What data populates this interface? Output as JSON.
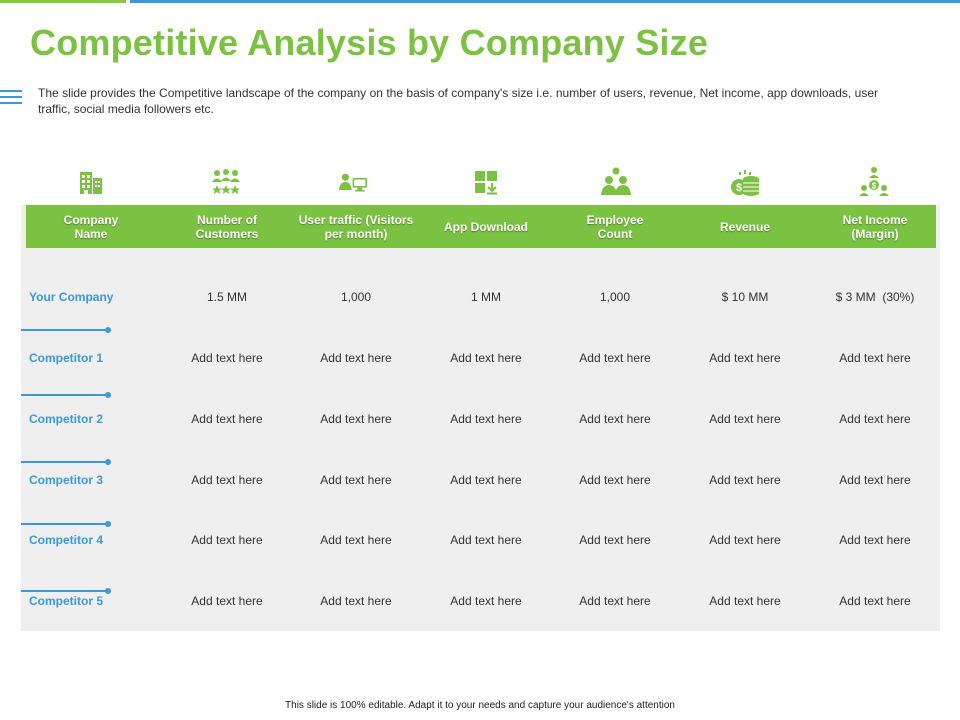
{
  "title": "Competitive Analysis by Company Size",
  "intro": "The slide provides the Competitive landscape of the company on the basis of company's size i.e. number of users, revenue, Net income, app downloads, user traffic, social media followers etc.",
  "icons": [
    "building-icon",
    "customers-group-icon",
    "user-computer-icon",
    "app-download-icon",
    "employee-group-icon",
    "revenue-coins-icon",
    "net-income-icon"
  ],
  "accent_colors": {
    "green": "#7cc242",
    "blue": "#3a9ad9",
    "panel": "#efefef"
  },
  "table": {
    "columns": [
      [
        "Company",
        "Name"
      ],
      [
        "Number of",
        "Customers"
      ],
      [
        "User traffic (Visitors",
        "per month)"
      ],
      [
        "App Download"
      ],
      [
        "Employee",
        "Count"
      ],
      [
        "Revenue"
      ],
      [
        "Net Income",
        "(Margin)"
      ]
    ],
    "rows": [
      {
        "label": "Your Company",
        "cells": [
          "1.5 MM",
          "1,000",
          "1 MM",
          "1,000",
          "$ 10 MM",
          "$ 3 MM  (30%)"
        ]
      },
      {
        "label": "Competitor 1",
        "cells": [
          "Add text here",
          "Add text here",
          "Add text here",
          "Add text here",
          "Add text here",
          "Add text here"
        ]
      },
      {
        "label": "Competitor 2",
        "cells": [
          "Add text here",
          "Add text here",
          "Add text here",
          "Add text here",
          "Add text here",
          "Add text here"
        ]
      },
      {
        "label": "Competitor 3",
        "cells": [
          "Add text here",
          "Add text here",
          "Add text here",
          "Add text here",
          "Add text here",
          "Add text here"
        ]
      },
      {
        "label": "Competitor 4",
        "cells": [
          "Add text here",
          "Add text here",
          "Add text here",
          "Add text here",
          "Add text here",
          "Add text here"
        ]
      },
      {
        "label": "Competitor 5",
        "cells": [
          "Add text here",
          "Add text here",
          "Add text here",
          "Add text here",
          "Add text here",
          "Add text here"
        ]
      }
    ]
  },
  "footer": "This slide is 100% editable. Adapt it to your needs and capture your audience's attention"
}
